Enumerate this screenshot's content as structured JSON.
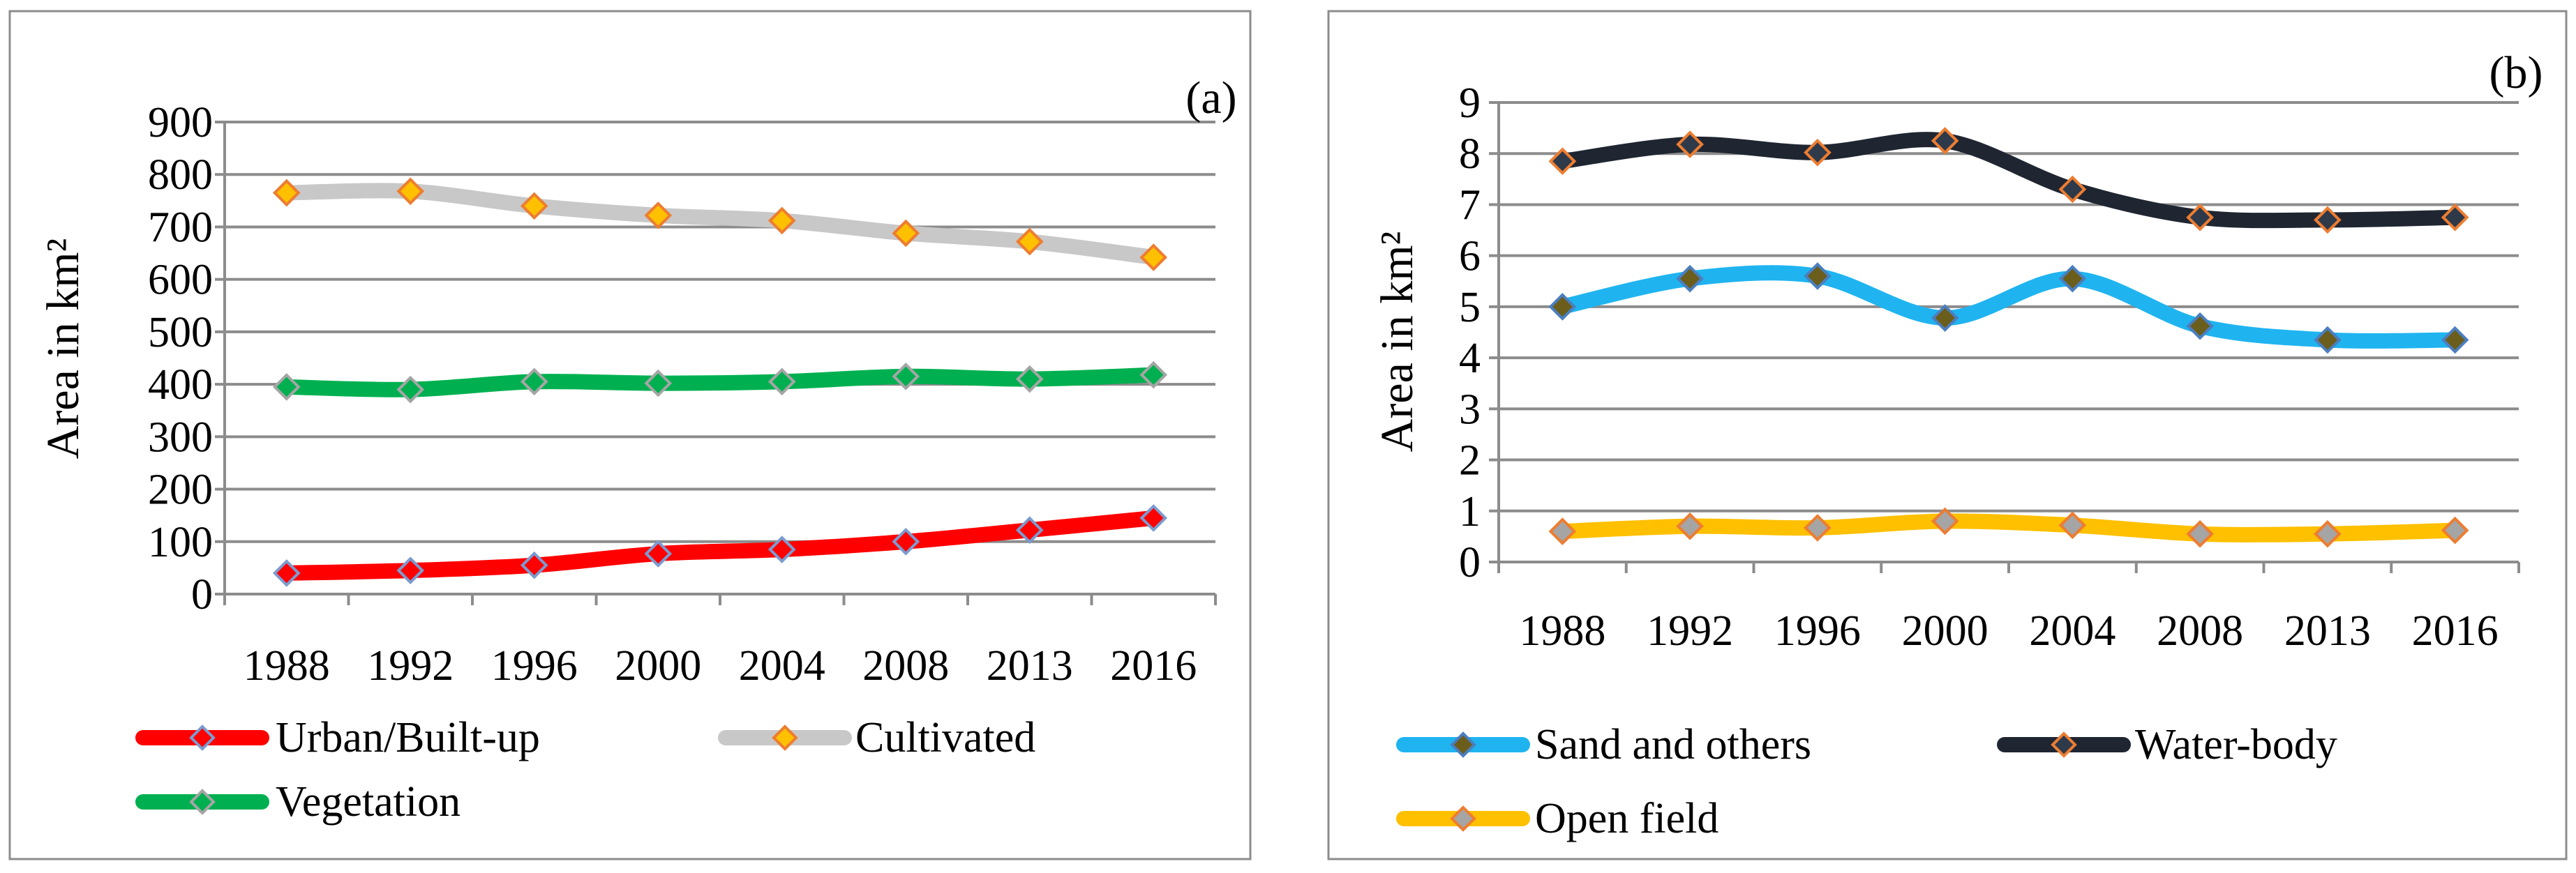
{
  "chart_data": [
    {
      "type": "line",
      "panel_label": "(a)",
      "ylabel": "Area in km²",
      "xlabel": "",
      "categories": [
        "1988",
        "1992",
        "1996",
        "2000",
        "2004",
        "2008",
        "2013",
        "2016"
      ],
      "ylim": [
        0,
        900
      ],
      "yticks": [
        "0",
        "100",
        "200",
        "300",
        "400",
        "500",
        "600",
        "700",
        "800",
        "900"
      ],
      "grid": true,
      "legend_position": "bottom",
      "series": [
        {
          "name": "Urban/Built-up",
          "values": [
            40,
            45,
            55,
            77,
            85,
            100,
            122,
            145
          ],
          "line_color": "#ff0000",
          "marker_fill": "#ff0000",
          "marker_edge": "#7b9bd0"
        },
        {
          "name": "Cultivated",
          "values": [
            765,
            768,
            740,
            722,
            712,
            688,
            672,
            642
          ],
          "line_color": "#c8c8c8",
          "marker_fill": "#ffc000",
          "marker_edge": "#ed7d31"
        },
        {
          "name": "Vegetation",
          "values": [
            395,
            390,
            405,
            402,
            405,
            415,
            410,
            418
          ],
          "line_color": "#00b050",
          "marker_fill": "#00b050",
          "marker_edge": "#a5a5a5"
        }
      ]
    },
    {
      "type": "line",
      "panel_label": "(b)",
      "ylabel": "Area in km²",
      "xlabel": "",
      "categories": [
        "1988",
        "1992",
        "1996",
        "2000",
        "2004",
        "2008",
        "2013",
        "2016"
      ],
      "ylim": [
        0,
        9
      ],
      "yticks": [
        "0",
        "1",
        "2",
        "3",
        "4",
        "5",
        "6",
        "7",
        "8",
        "9"
      ],
      "grid": true,
      "legend_position": "bottom",
      "series": [
        {
          "name": "Sand and others",
          "values": [
            5.0,
            5.55,
            5.6,
            4.78,
            5.55,
            4.62,
            4.35,
            4.35
          ],
          "line_color": "#1fb4f0",
          "marker_fill": "#6b5d1c",
          "marker_edge": "#4a7fc0"
        },
        {
          "name": "Water-body",
          "values": [
            7.85,
            8.18,
            8.02,
            8.25,
            7.3,
            6.75,
            6.7,
            6.75
          ],
          "line_color": "#1f2632",
          "marker_fill": "#2e3a4a",
          "marker_edge": "#ed7d31"
        },
        {
          "name": "Open field",
          "values": [
            0.6,
            0.7,
            0.67,
            0.8,
            0.72,
            0.55,
            0.55,
            0.62
          ],
          "line_color": "#ffc000",
          "marker_fill": "#a5a5a5",
          "marker_edge": "#ed7d31"
        }
      ]
    }
  ]
}
